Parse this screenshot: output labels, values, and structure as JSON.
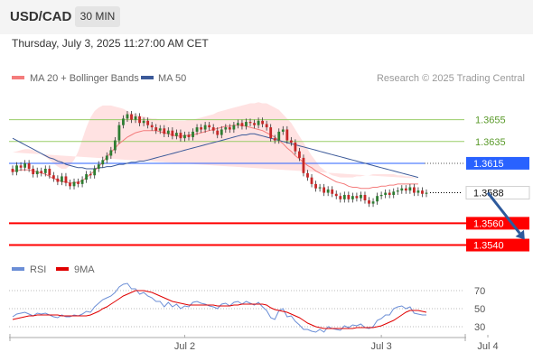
{
  "header": {
    "symbol": "USD/CAD",
    "timeframe": "30 MIN"
  },
  "datetime": "Thursday, July 3, 2025 11:27:00 AM CET",
  "colors": {
    "ma20": "#f47c7c",
    "band_fill": "#ffd6d6",
    "ma50": "#3c5a99",
    "target_green": "#9acd68",
    "pivot_blue": "#2962ff",
    "support_red": "#ff0000",
    "up_candle": "#2e7d32",
    "down_candle": "#c62828",
    "arrow": "#2e5a9c",
    "rsi": "#6b8ed6",
    "rsi_ma": "#e00000"
  },
  "chart_data": [
    {
      "type": "candlestick",
      "title": "USD/CAD",
      "legend": [
        "MA 20 + Bollinger Bands",
        "MA 50"
      ],
      "legend_placement": "top-left",
      "credit": "Research © 2025 Trading Central",
      "x_ticks": [
        {
          "label": "Jul 2",
          "bar": 42
        },
        {
          "label": "Jul 3",
          "bar": 90
        },
        {
          "label": "Jul 4",
          "bar": 116
        }
      ],
      "levels": [
        {
          "value": 1.3655,
          "label": "1.3655",
          "style": "target"
        },
        {
          "value": 1.3635,
          "label": "1.3635",
          "style": "target"
        },
        {
          "value": 1.3615,
          "label": "1.3615",
          "style": "pivot"
        },
        {
          "value": 1.3588,
          "label": "1.3588",
          "style": "last"
        },
        {
          "value": 1.356,
          "label": "1.3560",
          "style": "support"
        },
        {
          "value": 1.354,
          "label": "1.3540",
          "style": "support"
        }
      ],
      "ylim": [
        1.3533,
        1.3682
      ],
      "forecast_arrow": {
        "from_bar": 116,
        "from": 1.3588,
        "to_bar": 125,
        "to": 1.3545
      },
      "ma20": [
        1.3608,
        1.3608,
        1.3609,
        1.3609,
        1.3609,
        1.3608,
        1.3607,
        1.3606,
        1.3605,
        1.3603,
        1.3601,
        1.36,
        1.3598,
        1.3598,
        1.3597,
        1.3597,
        1.3598,
        1.3599,
        1.3602,
        1.3605,
        1.3608,
        1.3612,
        1.3616,
        1.3621,
        1.3625,
        1.3629,
        1.3633,
        1.3636,
        1.3639,
        1.3641,
        1.3643,
        1.3644,
        1.3645,
        1.3645,
        1.3645,
        1.3645,
        1.3644,
        1.3643,
        1.3642,
        1.3641,
        1.364,
        1.364,
        1.364,
        1.3641,
        1.3641,
        1.3642,
        1.3643,
        1.3644,
        1.3645,
        1.3646,
        1.3647,
        1.3648,
        1.3649,
        1.3649,
        1.365,
        1.365,
        1.365,
        1.3649,
        1.3648,
        1.3647,
        1.3646,
        1.3645,
        1.3643,
        1.3641,
        1.3639,
        1.3636,
        1.3633,
        1.3629,
        1.3626,
        1.3622,
        1.3619,
        1.3616,
        1.3613,
        1.3611,
        1.3608,
        1.3606,
        1.3604,
        1.3602,
        1.36,
        1.3598,
        1.3597,
        1.3596,
        1.3594,
        1.3593,
        1.3593,
        1.3592,
        1.3592,
        1.3592,
        1.3593,
        1.3593,
        1.3594,
        1.3594,
        1.3595,
        1.3595,
        1.3596,
        1.3596,
        1.3596,
        1.3596,
        1.3596,
        1.3596
      ],
      "bb_upper": [
        1.3625,
        1.3626,
        1.3627,
        1.3628,
        1.3628,
        1.3627,
        1.3625,
        1.3623,
        1.3621,
        1.3618,
        1.3615,
        1.3612,
        1.361,
        1.361,
        1.3613,
        1.3618,
        1.3626,
        1.3637,
        1.3648,
        1.3657,
        1.3663,
        1.3666,
        1.3668,
        1.3668,
        1.3668,
        1.3667,
        1.3666,
        1.3665,
        1.3663,
        1.3661,
        1.366,
        1.3659,
        1.3658,
        1.3657,
        1.3656,
        1.3656,
        1.3655,
        1.3655,
        1.3654,
        1.3654,
        1.3654,
        1.3654,
        1.3654,
        1.3655,
        1.3655,
        1.3656,
        1.3657,
        1.3658,
        1.3659,
        1.366,
        1.3662,
        1.3663,
        1.3664,
        1.3665,
        1.3666,
        1.3667,
        1.3668,
        1.3669,
        1.367,
        1.367,
        1.3671,
        1.367,
        1.367,
        1.3668,
        1.3666,
        1.3664,
        1.366,
        1.3656,
        1.3652,
        1.3646,
        1.364,
        1.3634,
        1.3628,
        1.3622,
        1.3617,
        1.3612,
        1.3609,
        1.3606,
        1.3604,
        1.3603,
        1.3602,
        1.3602,
        1.3602,
        1.3602,
        1.3603,
        1.3603,
        1.3604,
        1.3604,
        1.3605,
        1.3605,
        1.3605,
        1.3605,
        1.3605,
        1.3605,
        1.3604,
        1.3604,
        1.3603,
        1.3603,
        1.3602,
        1.3601
      ],
      "bb_lower": [
        1.3591,
        1.359,
        1.359,
        1.359,
        1.359,
        1.3589,
        1.3589,
        1.3589,
        1.3589,
        1.3588,
        1.3587,
        1.3586,
        1.3585,
        1.3584,
        1.3582,
        1.3579,
        1.3577,
        1.3575,
        1.3574,
        1.3573,
        1.3575,
        1.3578,
        1.3584,
        1.3591,
        1.3598,
        1.3606,
        1.3613,
        1.3619,
        1.3624,
        1.3628,
        1.3631,
        1.3632,
        1.3633,
        1.3633,
        1.3633,
        1.3633,
        1.3632,
        1.3631,
        1.363,
        1.3629,
        1.3628,
        1.3627,
        1.3627,
        1.3627,
        1.3628,
        1.3628,
        1.3629,
        1.363,
        1.363,
        1.3631,
        1.3632,
        1.3632,
        1.3632,
        1.3632,
        1.3631,
        1.363,
        1.3628,
        1.3625,
        1.362,
        1.3614,
        1.3608,
        1.36,
        1.3592,
        1.3584,
        1.3577,
        1.3572,
        1.3569,
        1.3568,
        1.3568,
        1.3568,
        1.3568,
        1.3568,
        1.3568,
        1.3568,
        1.3568,
        1.3568,
        1.3568,
        1.3568,
        1.3569,
        1.3569,
        1.357,
        1.357,
        1.3571,
        1.3572,
        1.3573,
        1.3574,
        1.3575,
        1.3576,
        1.3577,
        1.3578,
        1.3579,
        1.358,
        1.3581,
        1.3582,
        1.3583,
        1.3584,
        1.3585,
        1.3586,
        1.3587,
        1.3588
      ],
      "ma50": [
        1.3638,
        1.3636,
        1.3634,
        1.3632,
        1.363,
        1.3628,
        1.3626,
        1.3624,
        1.3622,
        1.362,
        1.3619,
        1.3617,
        1.3616,
        1.3614,
        1.3613,
        1.3612,
        1.3611,
        1.3611,
        1.361,
        1.361,
        1.361,
        1.3611,
        1.3611,
        1.3612,
        1.3612,
        1.3613,
        1.3614,
        1.3614,
        1.3615,
        1.3616,
        1.3616,
        1.3617,
        1.3617,
        1.3618,
        1.3619,
        1.362,
        1.3621,
        1.3622,
        1.3623,
        1.3624,
        1.3625,
        1.3626,
        1.3627,
        1.3628,
        1.3629,
        1.363,
        1.3631,
        1.3632,
        1.3633,
        1.3634,
        1.3635,
        1.3636,
        1.3637,
        1.3638,
        1.3639,
        1.364,
        1.3641,
        1.3641,
        1.3642,
        1.3642,
        1.3641,
        1.364,
        1.3639,
        1.3638,
        1.3637,
        1.3636,
        1.3635,
        1.3634,
        1.3633,
        1.3632,
        1.3631,
        1.363,
        1.3629,
        1.3628,
        1.3627,
        1.3626,
        1.3625,
        1.3624,
        1.3623,
        1.3622,
        1.3621,
        1.362,
        1.3619,
        1.3618,
        1.3617,
        1.3616,
        1.3615,
        1.3614,
        1.3613,
        1.3612,
        1.3611,
        1.361,
        1.3609,
        1.3608,
        1.3607,
        1.3606,
        1.3605,
        1.3604,
        1.3603,
        1.3602
      ],
      "close": [
        1.3607,
        1.3613,
        1.3611,
        1.3615,
        1.361,
        1.3605,
        1.3608,
        1.3606,
        1.361,
        1.3604,
        1.3601,
        1.3598,
        1.3603,
        1.3597,
        1.3594,
        1.3598,
        1.3596,
        1.36,
        1.3605,
        1.3604,
        1.361,
        1.3614,
        1.3618,
        1.3622,
        1.3627,
        1.3636,
        1.365,
        1.3656,
        1.366,
        1.3655,
        1.3658,
        1.3652,
        1.3654,
        1.365,
        1.3648,
        1.3645,
        1.3647,
        1.3642,
        1.3645,
        1.364,
        1.3643,
        1.3638,
        1.3641,
        1.3639,
        1.3644,
        1.3648,
        1.3646,
        1.365,
        1.3648,
        1.3645,
        1.3641,
        1.3646,
        1.3648,
        1.3646,
        1.365,
        1.3652,
        1.3649,
        1.3653,
        1.3652,
        1.365,
        1.3654,
        1.3651,
        1.3648,
        1.3638,
        1.3636,
        1.3644,
        1.3646,
        1.3636,
        1.3634,
        1.3626,
        1.362,
        1.3606,
        1.3602,
        1.3596,
        1.3592,
        1.3593,
        1.3588,
        1.3591,
        1.3587,
        1.3585,
        1.3582,
        1.3586,
        1.3582,
        1.3585,
        1.3583,
        1.3586,
        1.3581,
        1.3578,
        1.358,
        1.3585,
        1.3586,
        1.3588,
        1.3586,
        1.3589,
        1.359,
        1.3592,
        1.359,
        1.3593,
        1.3588,
        1.359,
        1.3587,
        1.3588
      ]
    },
    {
      "type": "line",
      "legend": [
        "RSI",
        "9MA"
      ],
      "legend_placement": "top-left",
      "y_ticks": [
        70,
        50,
        30
      ],
      "ylim": [
        20,
        82
      ],
      "rsi": [
        41,
        44,
        45,
        46,
        44,
        42,
        45,
        44,
        45,
        43,
        41,
        40,
        43,
        41,
        41,
        43,
        42,
        44,
        47,
        46,
        52,
        56,
        60,
        62,
        64,
        68,
        74,
        77,
        78,
        72,
        72,
        66,
        68,
        64,
        62,
        58,
        58,
        52,
        57,
        52,
        55,
        50,
        53,
        52,
        57,
        58,
        56,
        55,
        53,
        52,
        50,
        55,
        56,
        53,
        57,
        58,
        55,
        58,
        56,
        54,
        57,
        52,
        48,
        40,
        38,
        48,
        50,
        41,
        42,
        36,
        32,
        27,
        27,
        25,
        24,
        27,
        24,
        30,
        28,
        27,
        26,
        31,
        29,
        32,
        31,
        33,
        29,
        28,
        30,
        37,
        39,
        43,
        43,
        50,
        52,
        53,
        50,
        52,
        45,
        44,
        43,
        43
      ],
      "rsi_ma": [
        38,
        39,
        40,
        41,
        42,
        42,
        43,
        43,
        43,
        43,
        43,
        43,
        42,
        42,
        42,
        42,
        42,
        42,
        42,
        43,
        45,
        47,
        50,
        52,
        55,
        58,
        61,
        64,
        66,
        68,
        70,
        70,
        70,
        69,
        68,
        66,
        64,
        62,
        60,
        58,
        57,
        56,
        55,
        54,
        54,
        54,
        54,
        54,
        54,
        54,
        53,
        53,
        53,
        53,
        54,
        54,
        55,
        55,
        55,
        55,
        55,
        55,
        54,
        51,
        49,
        48,
        47,
        46,
        44,
        42,
        40,
        37,
        34,
        32,
        30,
        29,
        28,
        28,
        28,
        28,
        28,
        28,
        28,
        28,
        29,
        29,
        29,
        29,
        29,
        30,
        31,
        33,
        35,
        37,
        40,
        43,
        46,
        48,
        48,
        48,
        47,
        46
      ]
    }
  ]
}
